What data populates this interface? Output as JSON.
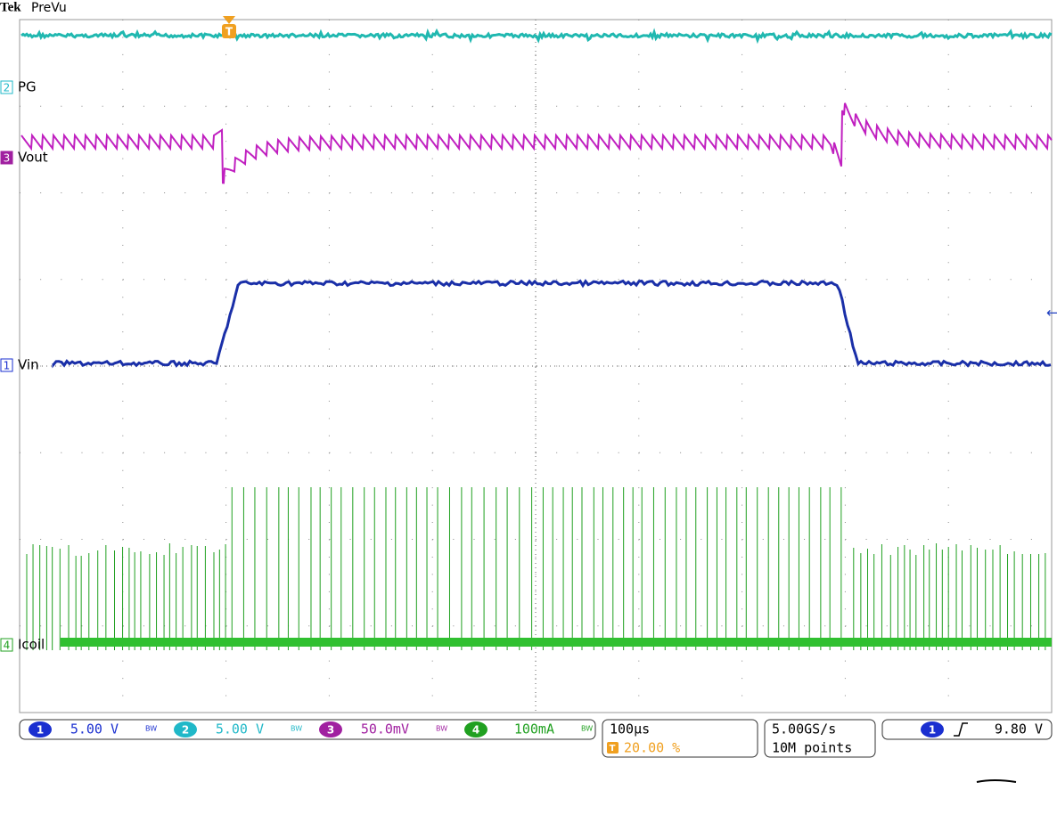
{
  "header": {
    "brand": "Tek",
    "mode": "PreVu"
  },
  "trigger_marker": "T",
  "channels": [
    {
      "number": "2",
      "label": "PG"
    },
    {
      "number": "3",
      "label": "Vout"
    },
    {
      "number": "1",
      "label": "Vin"
    },
    {
      "number": "4",
      "label": "Icoil"
    }
  ],
  "status_bar": {
    "channels": [
      {
        "number": "1",
        "scale": "5.00 V",
        "bw": "BW"
      },
      {
        "number": "2",
        "scale": "5.00 V",
        "bw": "BW"
      },
      {
        "number": "3",
        "scale": "50.0mV",
        "bw": "BW"
      },
      {
        "number": "4",
        "scale": "100mA",
        "bw": "BW"
      }
    ],
    "timebase": {
      "scale": "100µs",
      "trigger_icon": "T",
      "trigger_position": "20.00 %"
    },
    "acquisition": {
      "sample_rate": "5.00GS/s",
      "record_length": "10M points"
    },
    "trigger": {
      "source": "1",
      "level": "9.80 V"
    }
  }
}
